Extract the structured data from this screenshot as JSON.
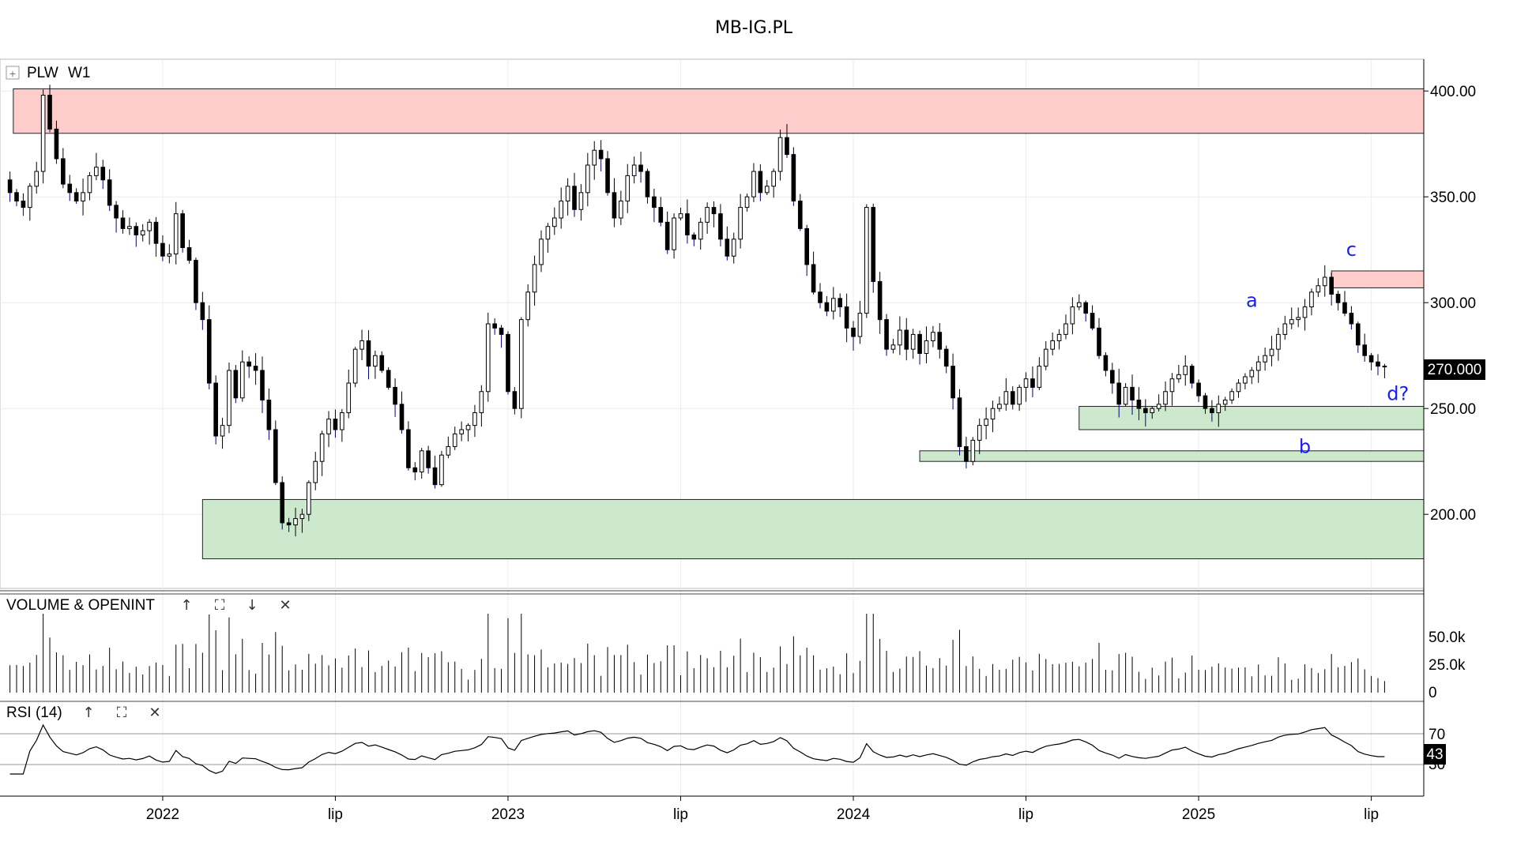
{
  "title": "MB-IG.PL",
  "symbol_label": "PLW",
  "interval_label": "W1",
  "expand_icon": "[+]",
  "price_tag": "270.000",
  "rsi_tag": "43",
  "volume_panel": {
    "label": "VOLUME & OPENINT",
    "controls": [
      "↑",
      "⛶",
      "↓",
      "✕"
    ],
    "ticks": [
      "50.0k",
      "25.0k",
      "0"
    ]
  },
  "rsi_panel": {
    "label": "RSI (14)",
    "controls": [
      "↑",
      "⛶",
      "✕"
    ],
    "ticks": [
      "70",
      "30"
    ]
  },
  "chart_data": {
    "type": "candlestick",
    "price_ticks": [
      "400.00",
      "350.00",
      "300.00",
      "250.00",
      "200.00"
    ],
    "price_tick_values": [
      400,
      350,
      300,
      250,
      200
    ],
    "price_ylim": [
      165,
      415
    ],
    "time_ticks": [
      {
        "label": "2022",
        "x": 0
      },
      {
        "label": "lip",
        "x": 26
      },
      {
        "label": "2023",
        "x": 52
      },
      {
        "label": "lip",
        "x": 78
      },
      {
        "label": "2024",
        "x": 104
      },
      {
        "label": "lip",
        "x": 130
      },
      {
        "label": "2025",
        "x": 156
      },
      {
        "label": "lip",
        "x": 182
      }
    ],
    "xlim": [
      -24.5,
      189.9
    ],
    "colors": {
      "resistance_zone": "#ffcccc",
      "support_zone": "#cde9cd",
      "wave_label": "#1a1aff",
      "bearish_body": "#000000",
      "bullish_body": "#ffffff",
      "wick_down": "#000080"
    },
    "zones": [
      {
        "kind": "resistance",
        "x_start": -22.5,
        "y_low": 380,
        "y_high": 401
      },
      {
        "kind": "resistance",
        "x_start": 176,
        "y_low": 307,
        "y_high": 315
      },
      {
        "kind": "support",
        "x_start": 138,
        "y_low": 240,
        "y_high": 251
      },
      {
        "kind": "support",
        "x_start": 114,
        "y_low": 225,
        "y_high": 230
      },
      {
        "kind": "support",
        "x_start": 6,
        "y_low": 179,
        "y_high": 207
      }
    ],
    "wave_labels": [
      {
        "text": "a",
        "x": 164,
        "y": 298
      },
      {
        "text": "b",
        "x": 172,
        "y": 229
      },
      {
        "text": "c",
        "x": 179,
        "y": 322
      },
      {
        "text": "d?",
        "x": 186,
        "y": 254
      }
    ],
    "close_series": [
      358,
      352,
      348,
      345,
      355,
      362,
      398,
      382,
      368,
      356,
      352,
      348,
      352,
      360,
      364,
      358,
      346,
      340,
      335,
      336,
      332,
      334,
      338,
      328,
      322,
      323,
      342,
      326,
      320,
      300,
      292,
      262,
      237,
      242,
      268,
      255,
      272,
      270,
      268,
      254,
      240,
      215,
      196,
      195,
      198,
      200,
      215,
      225,
      238,
      245,
      240,
      248,
      262,
      278,
      282,
      270,
      275,
      268,
      260,
      252,
      240,
      222,
      220,
      230,
      222,
      214,
      228,
      232,
      238,
      240,
      242,
      248,
      258,
      290,
      288,
      285,
      258,
      250,
      292,
      305,
      318,
      330,
      336,
      340,
      348,
      355,
      344,
      352,
      365,
      372,
      368,
      352,
      340,
      348,
      360,
      365,
      362,
      350,
      345,
      338,
      325,
      340,
      342,
      332,
      330,
      338,
      345,
      342,
      330,
      322,
      330,
      345,
      350,
      362,
      352,
      355,
      362,
      378,
      370,
      348,
      335,
      318,
      305,
      300,
      296,
      302,
      298,
      288,
      284,
      295,
      345,
      310,
      292,
      278,
      280,
      287,
      278,
      285,
      276,
      282,
      286,
      278,
      270,
      255,
      232,
      225,
      235,
      242,
      245,
      250,
      252,
      258,
      252,
      260,
      264,
      260,
      270,
      278,
      282,
      285,
      290,
      298,
      300,
      295,
      288,
      275,
      268,
      262,
      252,
      260,
      254,
      250,
      248,
      250,
      252,
      258,
      264,
      266,
      270,
      262,
      256,
      250,
      248,
      252,
      254,
      258,
      262,
      265,
      268,
      272,
      275,
      278,
      285,
      290,
      292,
      293,
      298,
      305,
      308,
      312,
      304,
      300,
      295,
      290,
      280,
      275,
      272,
      270,
      270
    ]
  }
}
